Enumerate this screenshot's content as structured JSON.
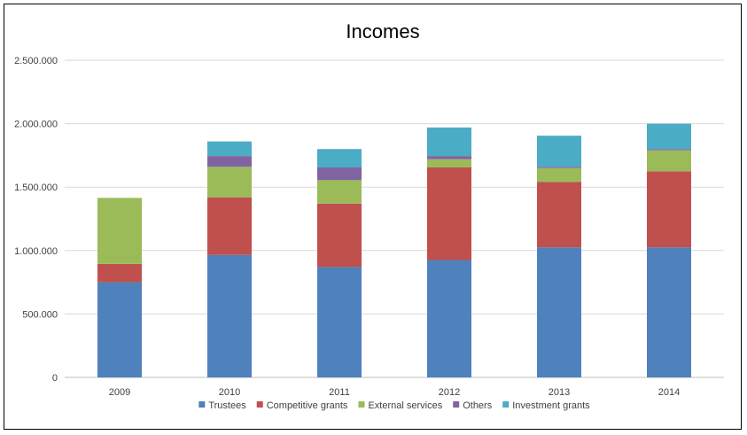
{
  "chart_data": {
    "type": "bar",
    "stacked": true,
    "title": "Incomes",
    "xlabel": "",
    "ylabel": "",
    "categories": [
      "2009",
      "2010",
      "2011",
      "2012",
      "2013",
      "2014"
    ],
    "ylim": [
      0,
      2500000
    ],
    "yticks": [
      0,
      500000,
      1000000,
      1500000,
      2000000,
      2500000
    ],
    "ytick_labels": [
      "0",
      "500.000",
      "1.000.000",
      "1.500.000",
      "2.000.000",
      "2.500.000"
    ],
    "grid": true,
    "legend_position": "bottom",
    "series": [
      {
        "name": "Trustees",
        "color": "#4f81bd",
        "values": [
          750000,
          965000,
          870000,
          925000,
          1025000,
          1025000
        ]
      },
      {
        "name": "Competitive grants",
        "color": "#c0504d",
        "values": [
          145000,
          455000,
          500000,
          730000,
          515000,
          600000
        ]
      },
      {
        "name": "External services",
        "color": "#9bbb59",
        "values": [
          520000,
          240000,
          185000,
          65000,
          110000,
          165000
        ]
      },
      {
        "name": "Others",
        "color": "#8064a2",
        "values": [
          0,
          85000,
          100000,
          25000,
          10000,
          10000
        ]
      },
      {
        "name": "Investment grants",
        "color": "#4bacc6",
        "values": [
          0,
          115000,
          145000,
          225000,
          245000,
          200000
        ]
      }
    ]
  }
}
